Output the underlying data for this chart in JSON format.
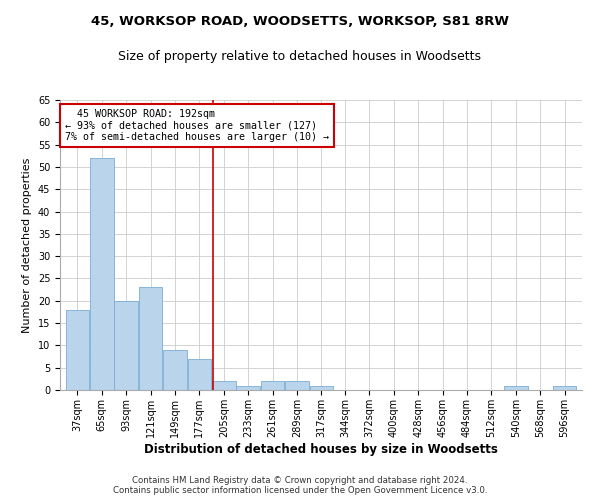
{
  "title1": "45, WORKSOP ROAD, WOODSETTS, WORKSOP, S81 8RW",
  "title2": "Size of property relative to detached houses in Woodsetts",
  "xlabel": "Distribution of detached houses by size in Woodsetts",
  "ylabel": "Number of detached properties",
  "footnote": "Contains HM Land Registry data © Crown copyright and database right 2024.\nContains public sector information licensed under the Open Government Licence v3.0.",
  "annotation_line1": "  45 WORKSOP ROAD: 192sqm",
  "annotation_line2": "← 93% of detached houses are smaller (127)",
  "annotation_line3": "7% of semi-detached houses are larger (10) →",
  "vline_x": 192,
  "bar_color": "#bad4ec",
  "bar_edge_color": "#7aadd4",
  "vline_color": "#cc0000",
  "annotation_box_color": "#cc0000",
  "categories": [
    37,
    65,
    93,
    121,
    149,
    177,
    205,
    233,
    261,
    289,
    317,
    344,
    372,
    400,
    428,
    456,
    484,
    512,
    540,
    568,
    596
  ],
  "values": [
    18,
    52,
    20,
    23,
    9,
    7,
    2,
    1,
    2,
    2,
    1,
    0,
    0,
    0,
    0,
    0,
    0,
    0,
    1,
    0,
    1
  ],
  "ylim": [
    0,
    65
  ],
  "bin_width": 27,
  "title1_fontsize": 9.5,
  "title2_fontsize": 9,
  "xlabel_fontsize": 8.5,
  "ylabel_fontsize": 8,
  "tick_fontsize": 7
}
